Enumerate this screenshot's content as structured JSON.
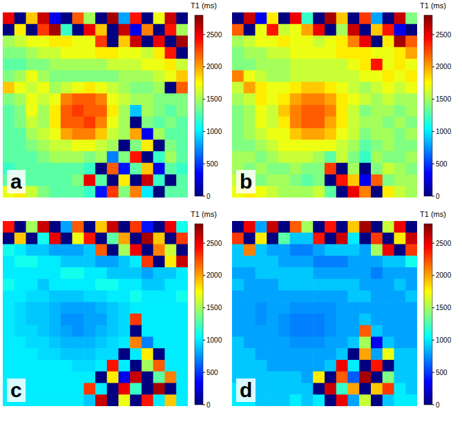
{
  "chart_data": [
    {
      "type": "heatmap",
      "panel": "a",
      "tick_labels": false,
      "colorbar": {
        "title": "T1 (ms)",
        "range": [
          0,
          2800
        ],
        "ticks": [
          0,
          500,
          1000,
          1500,
          2000,
          2500
        ]
      },
      "cells": [
        [
          2500,
          0,
          1900,
          2600,
          300,
          0,
          2200,
          1500,
          0,
          2700,
          800,
          2400,
          0,
          1700,
          2600,
          0
        ],
        [
          0,
          1800,
          0,
          2300,
          2700,
          1200,
          0,
          2500,
          1900,
          0,
          2600,
          300,
          2100,
          0,
          2400,
          1500
        ],
        [
          1500,
          1600,
          1700,
          1700,
          1800,
          1800,
          1700,
          1700,
          2300,
          0,
          1900,
          2600,
          0,
          2500,
          0,
          2700
        ],
        [
          1400,
          1400,
          1500,
          1600,
          1600,
          1700,
          1700,
          1700,
          1800,
          1800,
          1700,
          1700,
          1600,
          1800,
          2400,
          0
        ],
        [
          1300,
          1300,
          1400,
          1400,
          1500,
          1500,
          1500,
          1500,
          1500,
          1600,
          1600,
          1600,
          1700,
          1700,
          1800,
          1600
        ],
        [
          1400,
          1500,
          1700,
          1500,
          1400,
          1400,
          1400,
          1400,
          1400,
          1400,
          1500,
          1500,
          1500,
          1600,
          1700,
          1900
        ],
        [
          1900,
          1700,
          1600,
          1700,
          1500,
          1600,
          1700,
          1800,
          1700,
          1600,
          1500,
          1400,
          1400,
          1500,
          0,
          2200
        ],
        [
          1400,
          1500,
          1700,
          1600,
          1700,
          2100,
          2200,
          2200,
          2100,
          1700,
          1600,
          1500,
          1500,
          1400,
          1400,
          1400
        ],
        [
          1300,
          1400,
          1700,
          1500,
          1800,
          2200,
          2300,
          2200,
          2200,
          1800,
          1500,
          900,
          1500,
          1400,
          1300,
          1400
        ],
        [
          1300,
          1400,
          1600,
          1500,
          1800,
          2200,
          2200,
          2300,
          2100,
          1700,
          1500,
          0,
          1400,
          1300,
          1400,
          1300
        ],
        [
          1300,
          1300,
          1500,
          1600,
          1700,
          2000,
          2100,
          2100,
          1900,
          1600,
          1500,
          2000,
          300,
          1500,
          1300,
          1300
        ],
        [
          1300,
          1300,
          1400,
          1500,
          1600,
          1600,
          1700,
          1700,
          1600,
          1500,
          0,
          1400,
          1800,
          0,
          1400,
          1300
        ],
        [
          1300,
          1300,
          1300,
          1400,
          1500,
          1500,
          1500,
          1400,
          1500,
          700,
          1400,
          2400,
          0,
          1200,
          1500,
          1300
        ],
        [
          1200,
          1300,
          1300,
          1300,
          1300,
          1300,
          1300,
          1200,
          0,
          2200,
          400,
          1300,
          1900,
          300,
          1300,
          1200
        ],
        [
          1300,
          1300,
          1300,
          1300,
          1300,
          1300,
          1400,
          2500,
          1300,
          0,
          1800,
          0,
          2600,
          1200,
          0,
          1300
        ],
        [
          1700,
          1800,
          1600,
          1400,
          1300,
          1300,
          1300,
          1200,
          400,
          2300,
          1400,
          2100,
          1000,
          0,
          1300,
          1300
        ]
      ]
    },
    {
      "type": "heatmap",
      "panel": "b",
      "tick_labels": false,
      "colorbar": {
        "title": "T1 (ms)",
        "range": [
          0,
          2800
        ],
        "ticks": [
          0,
          500,
          1000,
          1500,
          2000,
          2500
        ]
      },
      "cells": [
        [
          0,
          2600,
          300,
          1800,
          0,
          2500,
          1200,
          0,
          2700,
          1900,
          0,
          2300,
          800,
          0,
          2600,
          1400
        ],
        [
          2200,
          0,
          1700,
          2400,
          1600,
          1700,
          2000,
          2500,
          0,
          1500,
          2600,
          0,
          1900,
          2400,
          300,
          0
        ],
        [
          1500,
          1600,
          1700,
          1700,
          1800,
          1700,
          1700,
          1600,
          1700,
          1800,
          2100,
          2500,
          0,
          1800,
          2700,
          2200
        ],
        [
          1400,
          1500,
          1500,
          1600,
          1600,
          1700,
          1700,
          1700,
          1700,
          1800,
          1800,
          1800,
          1700,
          1700,
          1800,
          2000
        ],
        [
          1400,
          1400,
          1500,
          1500,
          1500,
          1600,
          1600,
          1600,
          1600,
          1600,
          1700,
          1800,
          2400,
          1700,
          1800,
          1700
        ],
        [
          2100,
          1700,
          1600,
          1500,
          1500,
          1600,
          1600,
          1600,
          1600,
          1600,
          1600,
          1700,
          1700,
          1800,
          1700,
          1800
        ],
        [
          1600,
          2000,
          1800,
          1700,
          1700,
          1800,
          1900,
          1900,
          1800,
          1700,
          1600,
          1500,
          1600,
          1700,
          1600,
          1700
        ],
        [
          1500,
          1600,
          1800,
          1700,
          1800,
          2000,
          2100,
          2100,
          2000,
          1800,
          1700,
          1600,
          1500,
          1600,
          1500,
          1500
        ],
        [
          1400,
          1500,
          1700,
          1600,
          1900,
          2100,
          2200,
          2200,
          2100,
          1800,
          1600,
          1400,
          1500,
          1500,
          1400,
          1500
        ],
        [
          1400,
          1500,
          1700,
          1600,
          1800,
          2100,
          2200,
          2200,
          2000,
          1800,
          1600,
          1500,
          1500,
          1400,
          1500,
          1400
        ],
        [
          1400,
          1500,
          1600,
          1700,
          1700,
          1900,
          2000,
          2000,
          1900,
          1700,
          1600,
          1400,
          1500,
          1500,
          1400,
          1500
        ],
        [
          1400,
          1400,
          1500,
          1600,
          1700,
          1700,
          1700,
          1700,
          1700,
          1600,
          1500,
          1300,
          1400,
          1500,
          1400,
          1400
        ],
        [
          1500,
          1500,
          1400,
          1500,
          1600,
          1600,
          1600,
          1500,
          1300,
          1600,
          1400,
          1200,
          1500,
          1400,
          1400,
          1500
        ],
        [
          1500,
          1400,
          1500,
          1400,
          1400,
          1500,
          1400,
          1400,
          2300,
          0,
          1500,
          0,
          1400,
          1600,
          1500,
          1400
        ],
        [
          1600,
          1500,
          1400,
          1500,
          1500,
          1400,
          1300,
          1400,
          0,
          2400,
          1900,
          300,
          2200,
          1400,
          1500,
          1500
        ],
        [
          1700,
          1800,
          1700,
          1600,
          1500,
          1500,
          1500,
          1600,
          1300,
          0,
          2500,
          2100,
          0,
          1800,
          1600,
          1500
        ]
      ]
    },
    {
      "type": "heatmap",
      "panel": "c",
      "tick_labels": false,
      "colorbar": {
        "title": "T1 (ms)",
        "range": [
          0,
          2800
        ],
        "ticks": [
          0,
          500,
          1000,
          1500,
          2000,
          2500
        ]
      },
      "cells": [
        [
          2400,
          0,
          1500,
          2600,
          0,
          800,
          2200,
          0,
          1900,
          2600,
          0,
          2300,
          400,
          0,
          2500,
          1100
        ],
        [
          0,
          1900,
          0,
          1100,
          2500,
          0,
          1700,
          2400,
          0,
          1300,
          2000,
          0,
          2700,
          1900,
          0,
          2300
        ],
        [
          1100,
          1000,
          900,
          900,
          800,
          800,
          800,
          900,
          2200,
          0,
          1500,
          2500,
          0,
          2100,
          1600,
          0
        ],
        [
          1000,
          1100,
          1100,
          1000,
          1000,
          900,
          900,
          900,
          800,
          800,
          900,
          1000,
          2300,
          0,
          1800,
          2600
        ],
        [
          1000,
          1000,
          1000,
          1000,
          1000,
          1100,
          1100,
          1000,
          1000,
          900,
          900,
          900,
          800,
          900,
          900,
          1000
        ],
        [
          1100,
          1000,
          1000,
          900,
          1000,
          1000,
          1000,
          1000,
          1100,
          1100,
          1000,
          1000,
          900,
          900,
          1000,
          1000
        ],
        [
          1000,
          1000,
          950,
          950,
          900,
          900,
          900,
          950,
          950,
          1000,
          1000,
          1100,
          1000,
          1000,
          1000,
          1100
        ],
        [
          1000,
          950,
          900,
          900,
          850,
          800,
          800,
          800,
          850,
          900,
          950,
          1000,
          1000,
          1000,
          1000,
          1000
        ],
        [
          1000,
          950,
          900,
          900,
          850,
          750,
          750,
          800,
          800,
          900,
          950,
          2300,
          1000,
          1000,
          1000,
          1000
        ],
        [
          1000,
          950,
          950,
          900,
          850,
          800,
          750,
          800,
          850,
          900,
          950,
          0,
          1000,
          1000,
          1000,
          1000
        ],
        [
          1000,
          1000,
          950,
          950,
          900,
          850,
          850,
          850,
          900,
          950,
          1000,
          2100,
          700,
          1000,
          1000,
          1000
        ],
        [
          1000,
          1000,
          1000,
          950,
          950,
          900,
          900,
          900,
          950,
          950,
          0,
          1000,
          1800,
          0,
          1000,
          1000
        ],
        [
          1000,
          1000,
          1000,
          1000,
          1000,
          1000,
          950,
          950,
          1000,
          2400,
          1000,
          0,
          1500,
          2200,
          1000,
          1000
        ],
        [
          1000,
          1000,
          1000,
          1000,
          1000,
          1000,
          1000,
          1000,
          0,
          1800,
          300,
          2600,
          0,
          1300,
          2100,
          1000
        ],
        [
          1000,
          1000,
          1000,
          1000,
          1000,
          1000,
          1000,
          2300,
          1000,
          0,
          2500,
          1200,
          0,
          2700,
          0,
          1000
        ],
        [
          1000,
          1000,
          1000,
          1000,
          1000,
          1000,
          1000,
          900,
          2600,
          0,
          1700,
          0,
          2400,
          1000,
          1900,
          1000
        ]
      ]
    },
    {
      "type": "heatmap",
      "panel": "d",
      "tick_labels": false,
      "colorbar": {
        "title": "T1 (ms)",
        "range": [
          0,
          2800
        ],
        "ticks": [
          0,
          500,
          1000,
          1500,
          2000,
          2500
        ]
      },
      "cells": [
        [
          0,
          2500,
          800,
          2600,
          0,
          2200,
          1500,
          0,
          2400,
          0,
          1900,
          2700,
          0,
          1600,
          2500,
          0
        ],
        [
          2300,
          0,
          1800,
          0,
          1300,
          900,
          900,
          2400,
          0,
          2600,
          1000,
          0,
          2300,
          0,
          1800,
          2600
        ],
        [
          900,
          2100,
          900,
          800,
          800,
          700,
          700,
          800,
          900,
          900,
          900,
          800,
          1500,
          2500,
          0,
          2300
        ],
        [
          900,
          900,
          900,
          900,
          800,
          800,
          800,
          700,
          700,
          700,
          800,
          800,
          800,
          900,
          900,
          1100
        ],
        [
          800,
          800,
          900,
          900,
          900,
          900,
          900,
          800,
          800,
          800,
          800,
          800,
          700,
          800,
          800,
          800
        ],
        [
          900,
          800,
          800,
          800,
          900,
          900,
          900,
          900,
          900,
          900,
          900,
          800,
          800,
          800,
          900,
          800
        ],
        [
          800,
          800,
          800,
          800,
          800,
          800,
          800,
          800,
          800,
          800,
          900,
          900,
          800,
          800,
          800,
          900
        ],
        [
          800,
          800,
          750,
          800,
          800,
          750,
          750,
          750,
          750,
          800,
          800,
          800,
          800,
          800,
          800,
          800
        ],
        [
          800,
          800,
          750,
          800,
          750,
          700,
          700,
          700,
          750,
          800,
          800,
          900,
          800,
          800,
          800,
          800
        ],
        [
          800,
          800,
          800,
          800,
          750,
          700,
          700,
          700,
          750,
          800,
          800,
          2200,
          900,
          800,
          800,
          800
        ],
        [
          900,
          800,
          800,
          800,
          800,
          750,
          750,
          750,
          800,
          800,
          900,
          1500,
          300,
          900,
          800,
          800
        ],
        [
          900,
          900,
          800,
          800,
          800,
          800,
          800,
          800,
          800,
          900,
          0,
          2000,
          800,
          1700,
          900,
          900
        ],
        [
          900,
          900,
          900,
          800,
          800,
          800,
          800,
          800,
          900,
          2500,
          1000,
          0,
          2400,
          0,
          900,
          900
        ],
        [
          900,
          900,
          900,
          900,
          900,
          900,
          800,
          1800,
          0,
          2200,
          600,
          2700,
          0,
          1400,
          900,
          900
        ],
        [
          1000,
          900,
          900,
          900,
          900,
          900,
          900,
          0,
          2600,
          1200,
          2000,
          0,
          1900,
          2300,
          1000,
          900
        ],
        [
          1000,
          1000,
          900,
          900,
          900,
          1000,
          900,
          1000,
          0,
          2500,
          800,
          1600,
          0,
          900,
          1000,
          1000
        ]
      ]
    }
  ]
}
